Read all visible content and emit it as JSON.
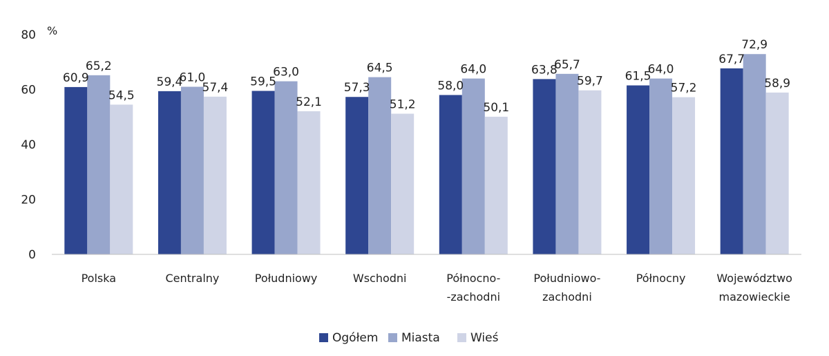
{
  "chart_data": {
    "type": "bar",
    "title": "",
    "unit_label": "%",
    "xlabel": "",
    "ylabel": "",
    "ylim": [
      0,
      80
    ],
    "yticks": [
      0,
      20,
      40,
      60,
      80
    ],
    "grid": false,
    "legend_position": "bottom",
    "categories": [
      [
        "Polska"
      ],
      [
        "Centralny"
      ],
      [
        "Południowy"
      ],
      [
        "Wschodni"
      ],
      [
        "Północno-",
        "-zachodni"
      ],
      [
        "Południowo-",
        "zachodni"
      ],
      [
        "Północny"
      ],
      [
        "Województwo",
        "mazowieckie"
      ]
    ],
    "series": [
      {
        "name": "Ogółem",
        "color": "#2e4691",
        "values": [
          60.9,
          59.4,
          59.5,
          57.3,
          58.0,
          63.8,
          61.5,
          67.7
        ],
        "labels": [
          "60,9",
          "59,4",
          "59,5",
          "57,3",
          "58,0",
          "63,8",
          "61,5",
          "67,7"
        ]
      },
      {
        "name": "Miasta",
        "color": "#98a6cc",
        "values": [
          65.2,
          61.0,
          63.0,
          64.5,
          64.0,
          65.7,
          64.0,
          72.9
        ],
        "labels": [
          "65,2",
          "61,0",
          "63,0",
          "64,5",
          "64,0",
          "65,7",
          "64,0",
          "72,9"
        ]
      },
      {
        "name": "Wieś",
        "color": "#cfd4e6",
        "values": [
          54.5,
          57.4,
          52.1,
          51.2,
          50.1,
          59.7,
          57.2,
          58.9
        ],
        "labels": [
          "54,5",
          "57,4",
          "52,1",
          "51,2",
          "50,1",
          "59,7",
          "57,2",
          "58,9"
        ]
      }
    ]
  }
}
